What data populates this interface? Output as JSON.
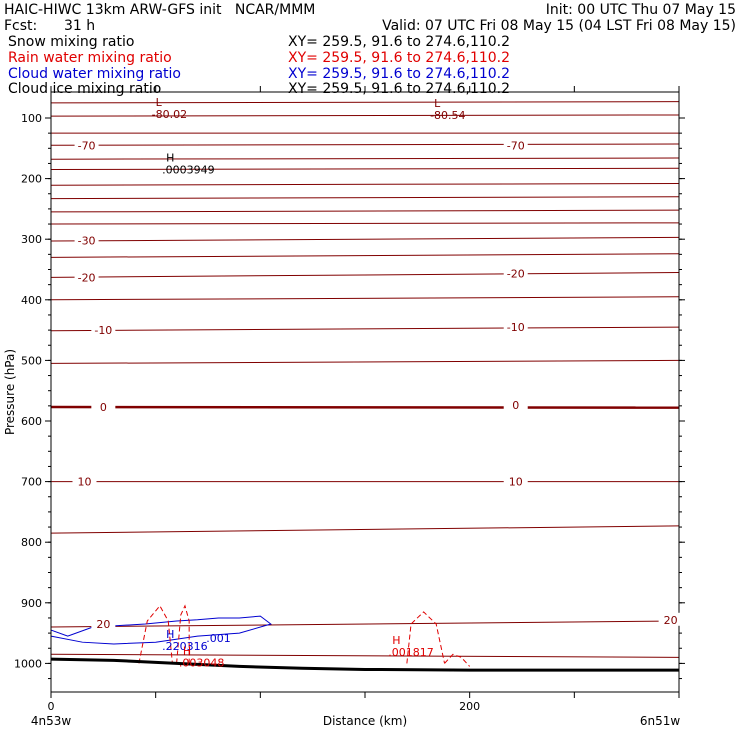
{
  "header": {
    "title": "HAIC-HIWC 13km ARW-GFS init   NCAR/MMM",
    "fcst_label": "Fcst:",
    "fcst_value": "31 h",
    "init": "Init: 00 UTC Thu 07 May 15",
    "valid": "Valid: 07 UTC Fri 08 May 15 (04 LST Fri 08 May 15)"
  },
  "legend": [
    {
      "name": "Snow mixing ratio",
      "xy": "XY= 259.5, 91.6 to 274.6,110.2",
      "color": "#000000"
    },
    {
      "name": "Rain water mixing ratio",
      "xy": "XY= 259.5, 91.6 to 274.6,110.2",
      "color": "#e00000"
    },
    {
      "name": "Cloud water mixing ratio",
      "xy": "XY= 259.5, 91.6 to 274.6,110.2",
      "color": "#0000d0"
    },
    {
      "name": "Cloud ice mixing ratio",
      "xy": "XY= 259.5, 91.6 to 274.6,110.2",
      "color": "#000000"
    }
  ],
  "chart_data": {
    "type": "line",
    "xlabel": "Distance (km)",
    "ylabel": "Pressure (hPa)",
    "xlim": [
      0,
      300
    ],
    "ylim": [
      1050,
      80
    ],
    "x_ticks": [
      0,
      200
    ],
    "y_ticks": [
      100,
      200,
      300,
      400,
      500,
      600,
      700,
      800,
      900,
      1000
    ],
    "x_endpoints": [
      "4n53w",
      "6n51w"
    ],
    "temperature_color": "#800000",
    "temperature_isotherms": [
      {
        "p_left": 75,
        "p_right": 73
      },
      {
        "p_left": 97,
        "p_right": 95
      },
      {
        "p_left": 125,
        "p_right": 125
      },
      {
        "p_left": 145,
        "p_right": 143,
        "label": "-70",
        "label_at": [
          [
            17,
            145
          ],
          [
            222,
            145
          ]
        ]
      },
      {
        "p_left": 168,
        "p_right": 166
      },
      {
        "p_left": 185,
        "p_right": 183
      },
      {
        "p_left": 211,
        "p_right": 208
      },
      {
        "p_left": 233,
        "p_right": 230
      },
      {
        "p_left": 255,
        "p_right": 252
      },
      {
        "p_left": 275,
        "p_right": 273
      },
      {
        "p_left": 303,
        "p_right": 297,
        "label": "-30",
        "label_at": [
          [
            17,
            302
          ]
        ]
      },
      {
        "p_left": 330,
        "p_right": 324
      },
      {
        "p_left": 363,
        "p_right": 355,
        "label": "-20",
        "label_at": [
          [
            17,
            363
          ],
          [
            222,
            357
          ]
        ]
      },
      {
        "p_left": 400,
        "p_right": 395
      },
      {
        "p_left": 451,
        "p_right": 445,
        "label": "-10",
        "label_at": [
          [
            25,
            450
          ],
          [
            222,
            445
          ]
        ]
      },
      {
        "p_left": 505,
        "p_right": 500
      },
      {
        "p_left": 577,
        "p_right": 578,
        "label": "0",
        "label_at": [
          [
            25,
            577
          ],
          [
            222,
            574
          ]
        ],
        "bold": true
      },
      {
        "p_left": 700,
        "p_right": 700,
        "label": "10",
        "label_at": [
          [
            16,
            700
          ],
          [
            222,
            700
          ]
        ]
      },
      {
        "p_left": 785,
        "p_right": 773
      },
      {
        "p_left": 940,
        "p_right": 930,
        "label": "20",
        "label_at": [
          [
            25,
            935
          ],
          [
            296,
            928
          ]
        ]
      },
      {
        "p_left": 985,
        "p_right": 990
      }
    ],
    "ground_pressure": [
      [
        0,
        993
      ],
      [
        30,
        995
      ],
      [
        60,
        1000
      ],
      [
        90,
        1005
      ],
      [
        120,
        1008
      ],
      [
        150,
        1010
      ],
      [
        200,
        1011
      ],
      [
        250,
        1011
      ],
      [
        300,
        1011
      ]
    ],
    "highs_lows": [
      {
        "type": "L",
        "value": "-80.02",
        "x": 50,
        "p": 80
      },
      {
        "type": "L",
        "value": "-80.54",
        "x": 183,
        "p": 82
      },
      {
        "type": "H",
        "value": ".0003949",
        "x": 55,
        "p": 172
      },
      {
        "type": "H",
        "value": ".220316",
        "x": 55,
        "p": 958
      },
      {
        "type": "H",
        "value": ".003048",
        "x": 63,
        "p": 985
      },
      {
        "type": "H",
        "value": ".001817",
        "x": 163,
        "p": 968
      }
    ],
    "rain_labels": [],
    "cloud_labels": [
      {
        "value": ".001",
        "x": 80,
        "p": 958
      }
    ]
  }
}
